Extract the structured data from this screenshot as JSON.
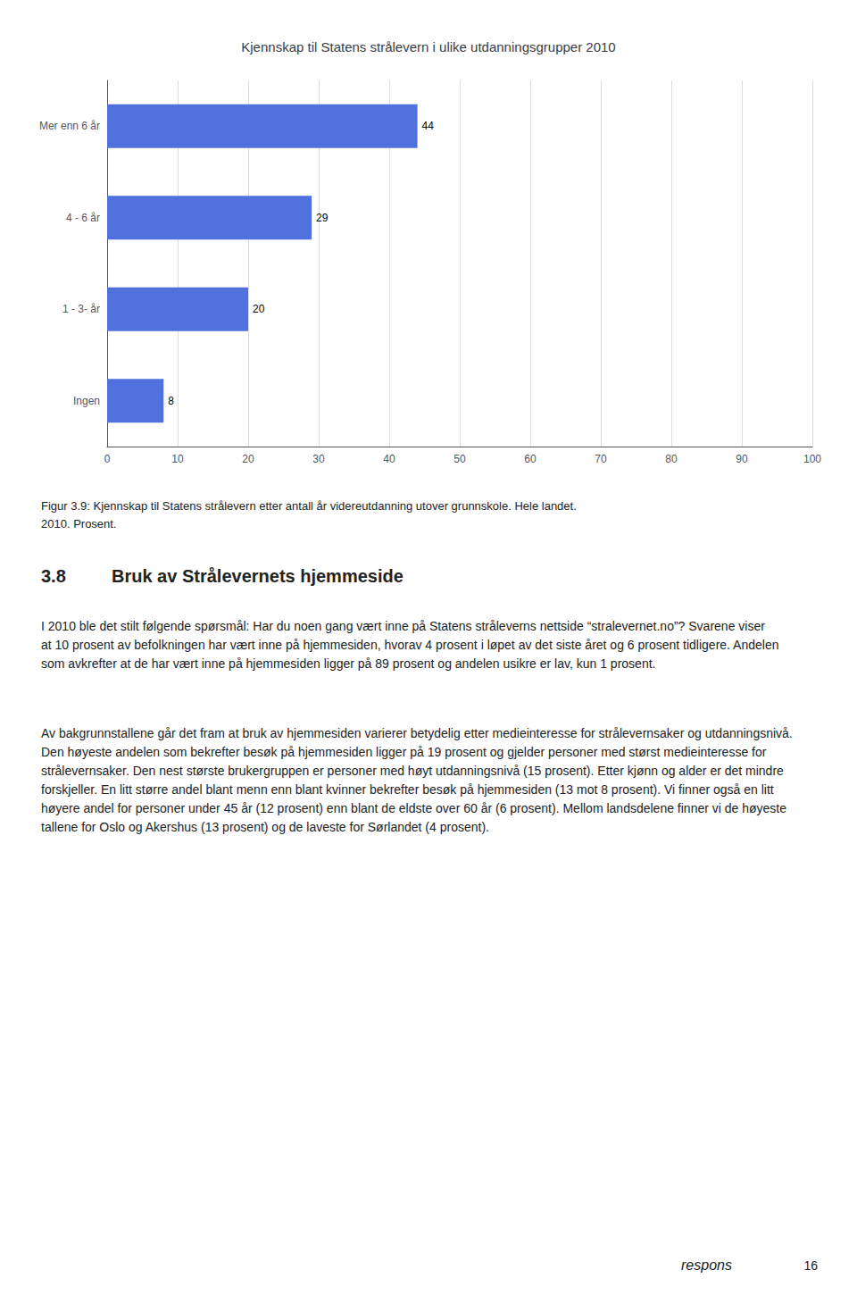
{
  "chart_data": {
    "type": "bar",
    "orientation": "horizontal",
    "title": "Kjennskap til Statens strålevern i ulike utdanningsgrupper 2010",
    "categories": [
      "Mer enn 6 år",
      "4 - 6 år",
      "1 - 3- år",
      "Ingen"
    ],
    "values": [
      44,
      29,
      20,
      8
    ],
    "xlim": [
      0,
      100
    ],
    "xticks": [
      0,
      10,
      20,
      30,
      40,
      50,
      60,
      70,
      80,
      90,
      100
    ],
    "grid": true,
    "data_labels": true,
    "annotations": [
      "Figur 3.9: Kjennskap til Statens strålevern etter antall år videreutdanning utover grunnskole. Hele landet.",
      "2010. Prosent.",
      "3.8",
      "Bruk av Strålevernets hjemmeside",
      "I 2010 ble det stilt følgende spørsmål: Har du noen gang vært inne på Statens stråleverns nettside “stralevernet.no”? Svarene viser at 10 prosent av befolkningen har vært inne på hjemmesiden, hvorav 4 prosent i løpet av det siste året og 6 prosent tidligere. Andelen som avkrefter at de har vært inne på hjemmesiden ligger på 89 prosent og andelen usikre er lav, kun 1 prosent.",
      "Av bakgrunnstallene går det fram at bruk av hjemmesiden varierer betydelig etter medieinteresse for strålevernsaker og utdanningsnivå. Den høyeste andelen som bekrefter besøk på hjemmesiden ligger på 19 prosent og gjelder personer med størst medieinteresse for strålevernsaker. Den nest største brukergruppen er personer med høyt utdanningsnivå (15 prosent). Etter kjønn og alder er det mindre forskjeller. En litt større andel blant menn enn blant kvinner bekrefter besøk på hjemmesiden (13 mot 8 prosent). Vi finner også en litt høyere andel for personer under 45 år (12 prosent) enn blant de eldste over 60 år (6 prosent). Mellom landsdelene finner vi de høyeste tallene for Oslo og Akershus (13 prosent) og de laveste for Sørlandet (4 prosent).",
      "16",
      "respons"
    ]
  }
}
